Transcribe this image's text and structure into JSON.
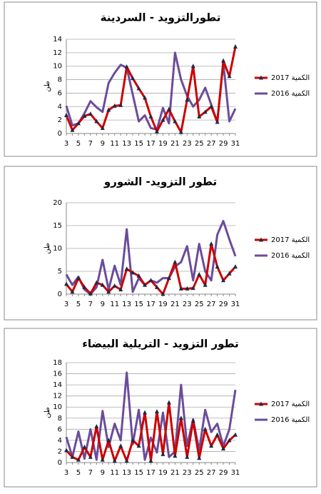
{
  "chart_data": [
    {
      "type": "line",
      "title": "تطورالتزويد - السردينة",
      "y_label": "طن",
      "categories": [
        3,
        null,
        5,
        null,
        7,
        null,
        9,
        null,
        11,
        null,
        13,
        null,
        15,
        null,
        17,
        null,
        19,
        null,
        21,
        null,
        23,
        null,
        25,
        null,
        27,
        null,
        29,
        null,
        31
      ],
      "ylim": [
        0,
        14
      ],
      "yticks": [
        0,
        2,
        4,
        6,
        8,
        10,
        12,
        14
      ],
      "series": [
        {
          "name": "الكمية 2017",
          "color": "#cc0000",
          "marker": "triangle",
          "values": [
            2.7,
            0.5,
            1.5,
            2.6,
            2.9,
            1.8,
            0.8,
            3.5,
            4.1,
            4.2,
            9.9,
            8.2,
            6.7,
            5.3,
            2.5,
            0.3,
            2.0,
            3.6,
            1.8,
            0.2,
            5.0,
            10.0,
            2.5,
            3.2,
            4.0,
            1.7,
            10.8,
            8.5,
            12.9
          ]
        },
        {
          "name": "الكمية 2016",
          "color": "#6b4c9a",
          "values": [
            4.1,
            1.2,
            1.5,
            3.0,
            4.8,
            3.9,
            3.2,
            7.5,
            9.0,
            10.2,
            9.8,
            5.8,
            1.8,
            2.7,
            0.8,
            0.6,
            3.8,
            1.5,
            12.0,
            8.0,
            5.6,
            4.0,
            5.0,
            6.8,
            4.3,
            1.7,
            10.5,
            1.8,
            3.7
          ]
        }
      ]
    },
    {
      "type": "line",
      "title": "تطور التزويد- الشورو",
      "y_label": "طن",
      "categories": [
        3,
        null,
        5,
        null,
        7,
        null,
        9,
        null,
        11,
        null,
        13,
        null,
        15,
        null,
        17,
        null,
        19,
        null,
        21,
        null,
        23,
        null,
        25,
        null,
        27,
        null,
        29,
        null,
        31
      ],
      "ylim": [
        0,
        20
      ],
      "yticks": [
        0,
        5,
        10,
        15,
        20
      ],
      "series": [
        {
          "name": "الكمية 2017",
          "color": "#cc0000",
          "marker": "triangle",
          "values": [
            2.2,
            0.5,
            3.5,
            1.5,
            0.1,
            2.5,
            2.0,
            0.5,
            1.8,
            1.0,
            5.5,
            4.7,
            4.0,
            2.0,
            3.0,
            1.5,
            0.0,
            3.5,
            7.0,
            1.2,
            1.2,
            1.3,
            4.3,
            2.0,
            11.0,
            6.0,
            3.0,
            4.5,
            6.0
          ]
        },
        {
          "name": "الكمية 2016",
          "color": "#6b4c9a",
          "values": [
            4.3,
            2.0,
            3.8,
            1.0,
            0.0,
            1.5,
            7.5,
            1.0,
            6.2,
            2.0,
            14.2,
            0.5,
            3.5,
            2.0,
            3.0,
            2.5,
            3.5,
            3.5,
            6.0,
            7.0,
            10.5,
            3.0,
            11.0,
            5.0,
            3.0,
            13.0,
            16.0,
            12.0,
            8.3
          ]
        }
      ]
    },
    {
      "type": "line",
      "title": "تطور التزويد - التريلية البيضاء",
      "y_label": "طن",
      "categories": [
        3,
        null,
        5,
        null,
        7,
        null,
        9,
        null,
        11,
        null,
        13,
        null,
        15,
        null,
        17,
        null,
        19,
        null,
        21,
        null,
        23,
        null,
        25,
        null,
        27,
        null,
        29,
        null,
        31
      ],
      "ylim": [
        0,
        18
      ],
      "yticks": [
        0,
        2,
        4,
        6,
        8,
        10,
        12,
        14,
        16,
        18
      ],
      "series": [
        {
          "name": "الكمية 2017",
          "color": "#cc0000",
          "marker": "triangle",
          "values": [
            2.2,
            1.0,
            0.5,
            2.8,
            1.0,
            6.5,
            0.5,
            4.0,
            0.3,
            3.0,
            0.3,
            4.0,
            3.0,
            9.0,
            0.3,
            9.2,
            1.5,
            10.8,
            1.2,
            8.0,
            1.0,
            7.5,
            0.8,
            6.0,
            3.0,
            5.0,
            2.5,
            4.0,
            5.0
          ]
        },
        {
          "name": "الكمية 2016",
          "color": "#6b4c9a",
          "values": [
            4.6,
            1.0,
            5.6,
            0.7,
            6.0,
            0.5,
            9.3,
            2.8,
            7.0,
            4.0,
            16.2,
            3.3,
            9.5,
            0.5,
            4.5,
            1.8,
            9.0,
            1.0,
            2.0,
            14.0,
            3.0,
            7.8,
            2.2,
            9.5,
            5.5,
            7.0,
            3.0,
            6.0,
            13.1
          ]
        }
      ]
    }
  ]
}
